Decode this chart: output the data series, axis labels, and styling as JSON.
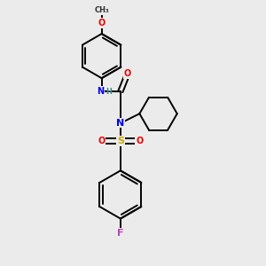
{
  "bg_color": "#ebebeb",
  "bond_color": "#000000",
  "bond_width": 1.4,
  "atom_colors": {
    "N": "#0000ee",
    "O": "#ee0000",
    "S": "#ccaa00",
    "F": "#bb44bb",
    "C": "#000000"
  },
  "xlim": [
    0,
    10
  ],
  "ylim": [
    0,
    10
  ]
}
